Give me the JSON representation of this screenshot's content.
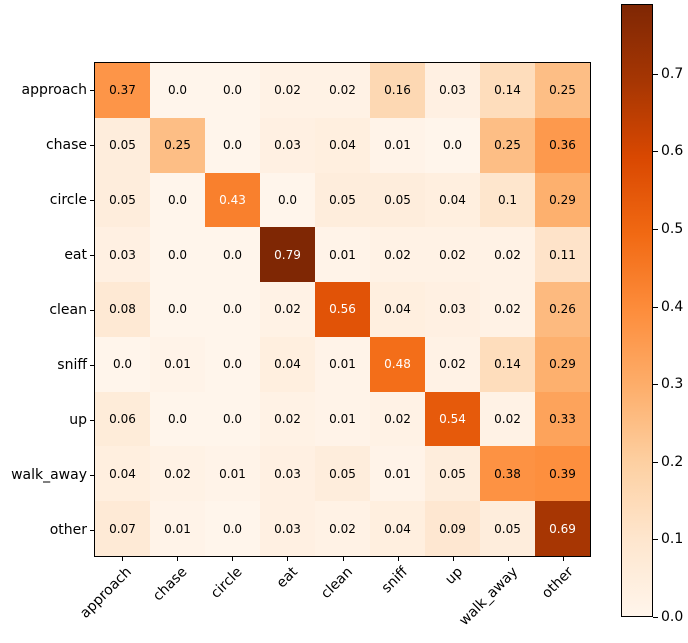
{
  "figure": {
    "background": "#ffffff",
    "text_color": "#000000"
  },
  "chart_data": {
    "type": "heatmap",
    "title": "",
    "xlabel": "",
    "ylabel": "",
    "x_categories": [
      "approach",
      "chase",
      "circle",
      "eat",
      "clean",
      "sniff",
      "up",
      "walk_away",
      "other"
    ],
    "y_categories": [
      "approach",
      "chase",
      "circle",
      "eat",
      "clean",
      "sniff",
      "up",
      "walk_away",
      "other"
    ],
    "matrix": [
      [
        0.37,
        0.0,
        0.0,
        0.02,
        0.02,
        0.16,
        0.03,
        0.14,
        0.25
      ],
      [
        0.05,
        0.25,
        0.0,
        0.03,
        0.04,
        0.01,
        0.0,
        0.25,
        0.36
      ],
      [
        0.05,
        0.0,
        0.43,
        0.0,
        0.05,
        0.05,
        0.04,
        0.1,
        0.29
      ],
      [
        0.03,
        0.0,
        0.0,
        0.79,
        0.01,
        0.02,
        0.02,
        0.02,
        0.11
      ],
      [
        0.08,
        0.0,
        0.0,
        0.02,
        0.56,
        0.04,
        0.03,
        0.02,
        0.26
      ],
      [
        0.0,
        0.01,
        0.0,
        0.04,
        0.01,
        0.48,
        0.02,
        0.14,
        0.29
      ],
      [
        0.06,
        0.0,
        0.0,
        0.02,
        0.01,
        0.02,
        0.54,
        0.02,
        0.33
      ],
      [
        0.04,
        0.02,
        0.01,
        0.03,
        0.05,
        0.01,
        0.05,
        0.38,
        0.39
      ],
      [
        0.07,
        0.01,
        0.0,
        0.03,
        0.02,
        0.04,
        0.09,
        0.05,
        0.69
      ]
    ],
    "cell_labels": [
      [
        "0.37",
        "0.0",
        "0.0",
        "0.02",
        "0.02",
        "0.16",
        "0.03",
        "0.14",
        "0.25"
      ],
      [
        "0.05",
        "0.25",
        "0.0",
        "0.03",
        "0.04",
        "0.01",
        "0.0",
        "0.25",
        "0.36"
      ],
      [
        "0.05",
        "0.0",
        "0.43",
        "0.0",
        "0.05",
        "0.05",
        "0.04",
        "0.1",
        "0.29"
      ],
      [
        "0.03",
        "0.0",
        "0.0",
        "0.79",
        "0.01",
        "0.02",
        "0.02",
        "0.02",
        "0.11"
      ],
      [
        "0.08",
        "0.0",
        "0.0",
        "0.02",
        "0.56",
        "0.04",
        "0.03",
        "0.02",
        "0.26"
      ],
      [
        "0.0",
        "0.01",
        "0.0",
        "0.04",
        "0.01",
        "0.48",
        "0.02",
        "0.14",
        "0.29"
      ],
      [
        "0.06",
        "0.0",
        "0.0",
        "0.02",
        "0.01",
        "0.02",
        "0.54",
        "0.02",
        "0.33"
      ],
      [
        "0.04",
        "0.02",
        "0.01",
        "0.03",
        "0.05",
        "0.01",
        "0.05",
        "0.38",
        "0.39"
      ],
      [
        "0.07",
        "0.01",
        "0.0",
        "0.03",
        "0.02",
        "0.04",
        "0.09",
        "0.05",
        "0.69"
      ]
    ],
    "vmin": 0.0,
    "vmax": 0.79,
    "colormap": "Oranges",
    "colormap_anchors": [
      "#fff5eb",
      "#fee6ce",
      "#fdd0a2",
      "#fdae6b",
      "#fd8d3c",
      "#f16913",
      "#d94801",
      "#a63603",
      "#7f2704"
    ],
    "cell_text_color_low": "#000000",
    "cell_text_color_high": "#ffffff",
    "white_text_threshold": 0.5,
    "grid": false,
    "legend_position": "colorbar-right",
    "colorbar_ticks": [
      "0.0",
      "0.1",
      "0.2",
      "0.3",
      "0.4",
      "0.5",
      "0.6",
      "0.7"
    ]
  }
}
